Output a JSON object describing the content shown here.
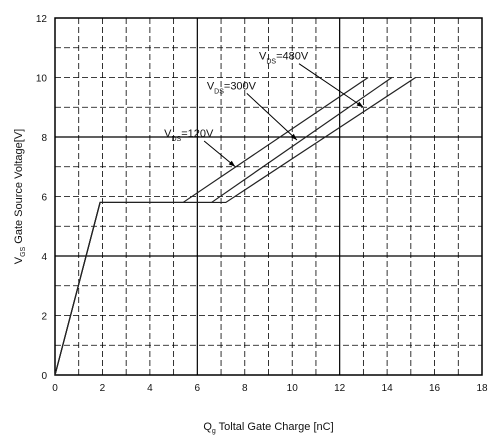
{
  "chart_data": {
    "type": "line",
    "xlabel": {
      "main": "Q",
      "sub": "g",
      "rest": " Toltal Gate Charge [nC]"
    },
    "ylabel": {
      "main": "V",
      "sub": "GS",
      "rest": " Gate Source Voltage[V]"
    },
    "xlim": [
      0,
      18
    ],
    "ylim": [
      0,
      12
    ],
    "x_ticks": [
      "0",
      "2",
      "4",
      "6",
      "8",
      "10",
      "12",
      "14",
      "16",
      "18"
    ],
    "y_ticks": [
      "0",
      "2",
      "4",
      "6",
      "8",
      "10",
      "12"
    ],
    "grid": true,
    "series": [
      {
        "name": "V_DS=120V",
        "x": [
          0,
          1.9,
          5.4,
          13.2
        ],
        "y": [
          0,
          5.8,
          5.8,
          10
        ]
      },
      {
        "name": "V_DS=300V",
        "x": [
          0,
          1.9,
          6.6,
          14.2
        ],
        "y": [
          0,
          5.8,
          5.8,
          10
        ]
      },
      {
        "name": "V_DS=480V",
        "x": [
          0,
          1.9,
          7.2,
          15.2
        ],
        "y": [
          0,
          5.8,
          5.8,
          10
        ]
      }
    ],
    "annotations": [
      {
        "main": "V",
        "sub": "DS",
        "rest": "=480V",
        "x": 8.6,
        "y": 10.6,
        "arrow_to": [
          13.0,
          9.0
        ]
      },
      {
        "main": "V",
        "sub": "DS",
        "rest": "=300V",
        "x": 6.4,
        "y": 9.6,
        "arrow_to": [
          10.2,
          7.9
        ]
      },
      {
        "main": "V",
        "sub": "DS",
        "rest": "=120V",
        "x": 4.6,
        "y": 8.0,
        "arrow_to": [
          7.6,
          7.0
        ]
      }
    ]
  }
}
